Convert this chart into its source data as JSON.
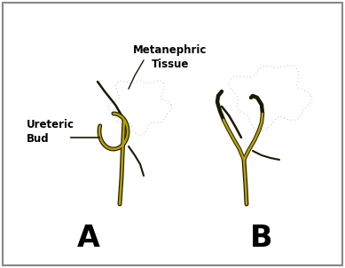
{
  "bg_color": "#ffffff",
  "border_color": "#888888",
  "label_A": "A",
  "label_B": "B",
  "label_ureteric_bud": "Ureteric\nBud",
  "label_metanephric": "Metanephric\nTissue",
  "text_color": "#000000",
  "duct_color_dark": "#1a1a00",
  "duct_color_yellow": "#b8a000",
  "dotted_color": "#bbbbbb",
  "line_color": "#000000"
}
